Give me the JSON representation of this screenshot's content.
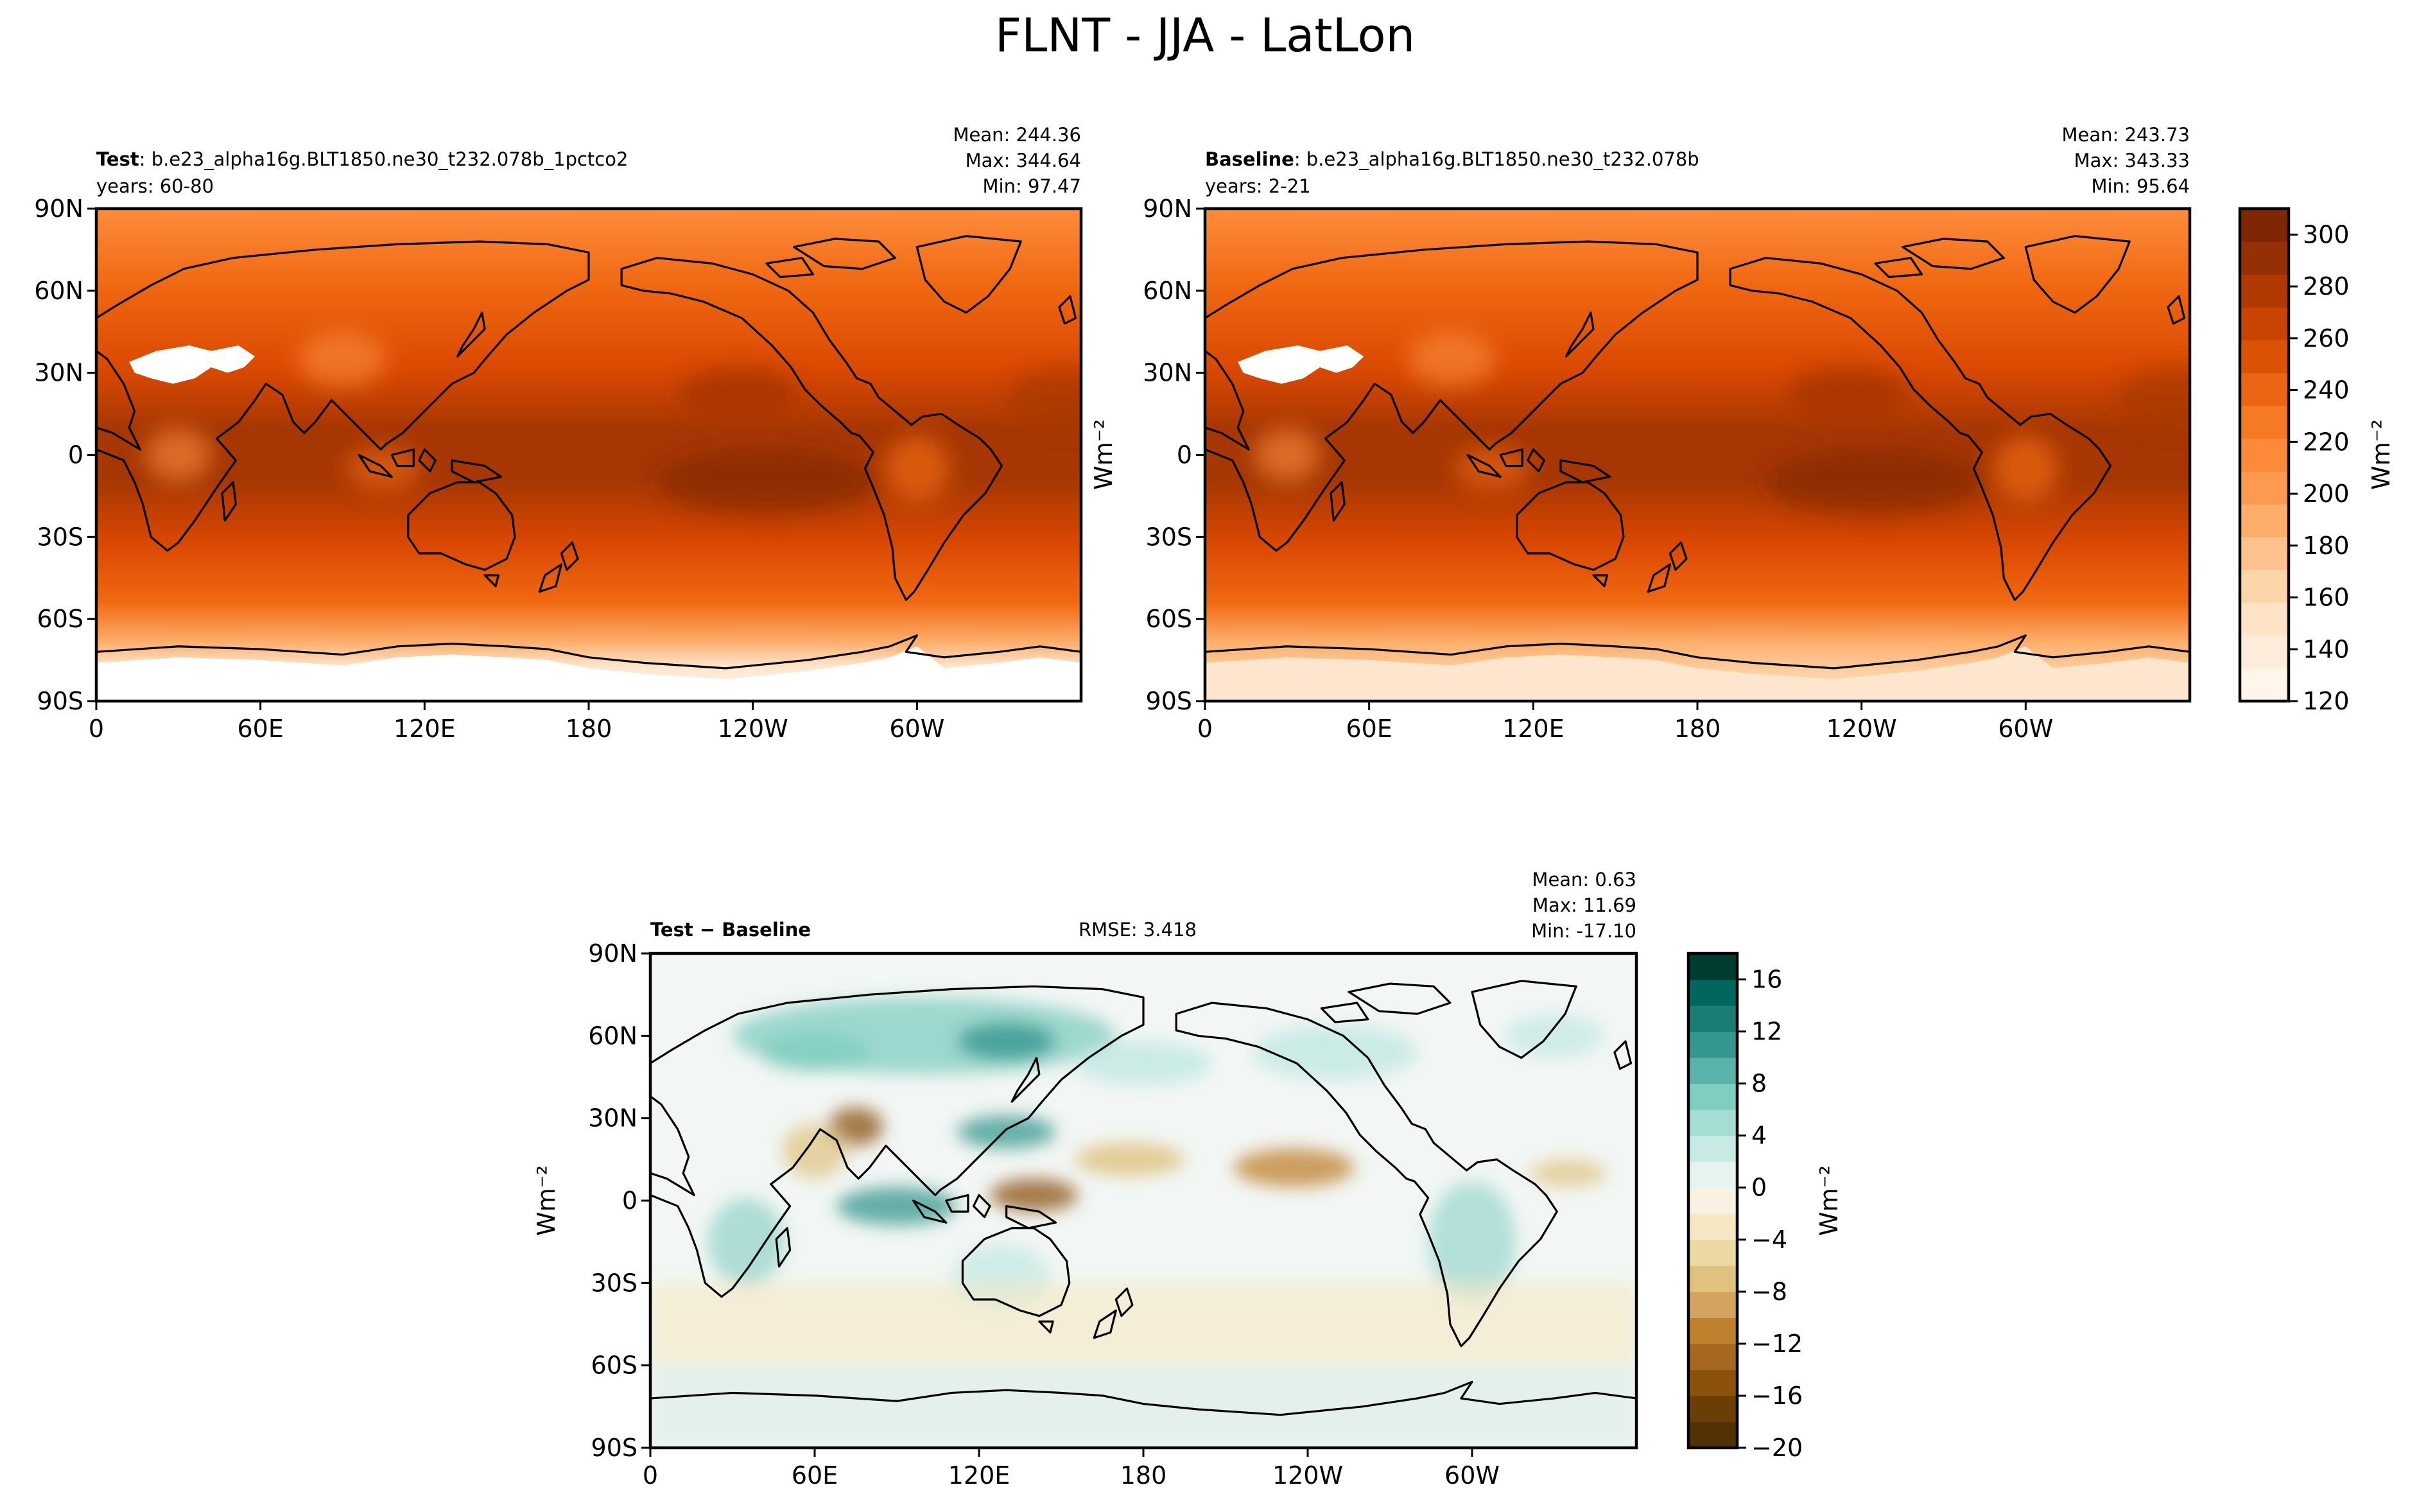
{
  "figure": {
    "title": "FLNT - JJA - LatLon"
  },
  "chart_data": [
    {
      "type": "heatmap",
      "panel": "test",
      "label_bold": "Test",
      "label_rest": ": b.e23_alpha16g.BLT1850.ne30_t232.078b_1pctco2",
      "years": "years: 60-80",
      "stats": {
        "mean": "Mean: 244.36",
        "max": "Max: 344.64",
        "min": "Min: 97.47"
      },
      "x_ticks": [
        "0",
        "60E",
        "120E",
        "180",
        "120W",
        "60W"
      ],
      "y_ticks": [
        "90N",
        "60N",
        "30N",
        "0",
        "30S",
        "60S",
        "90S"
      ],
      "xlim": [
        0,
        360
      ],
      "ylim": [
        -90,
        90
      ],
      "colormap": "Oranges",
      "range": [
        120,
        310
      ]
    },
    {
      "type": "heatmap",
      "panel": "baseline",
      "label_bold": "Baseline",
      "label_rest": ": b.e23_alpha16g.BLT1850.ne30_t232.078b",
      "years": "years: 2-21",
      "stats": {
        "mean": "Mean: 243.73",
        "max": "Max: 343.33",
        "min": "Min: 95.64"
      },
      "x_ticks": [
        "0",
        "60E",
        "120E",
        "180",
        "120W",
        "60W"
      ],
      "y_ticks": [
        "90N",
        "60N",
        "30N",
        "0",
        "30S",
        "60S",
        "90S"
      ],
      "xlim": [
        0,
        360
      ],
      "ylim": [
        -90,
        90
      ],
      "colormap": "Oranges",
      "range": [
        120,
        310
      ]
    },
    {
      "type": "heatmap",
      "panel": "difference",
      "label_bold": "Test − Baseline",
      "rmse": "RMSE: 3.418",
      "stats": {
        "mean": "Mean:  0.63",
        "max": "Max: 11.69",
        "min": "Min: -17.10"
      },
      "x_ticks": [
        "0",
        "60E",
        "120E",
        "180",
        "120W",
        "60W"
      ],
      "y_ticks": [
        "90N",
        "60N",
        "30N",
        "0",
        "30S",
        "60S",
        "90S"
      ],
      "xlim": [
        0,
        360
      ],
      "ylim": [
        -90,
        90
      ],
      "colormap": "BrBG",
      "range": [
        -20,
        18
      ]
    }
  ],
  "colorbars": {
    "absolute": {
      "ticks": [
        "120",
        "140",
        "160",
        "180",
        "200",
        "220",
        "240",
        "260",
        "280",
        "300"
      ],
      "unit": "Wm⁻²",
      "min": 120,
      "max": 310
    },
    "difference": {
      "ticks": [
        "−20",
        "−16",
        "−12",
        "−8",
        "−4",
        "0",
        "4",
        "8",
        "12",
        "16"
      ],
      "unit": "Wm⁻²",
      "min": -20,
      "max": 18
    }
  },
  "y_unit_label": "Wm⁻²",
  "colors": {
    "orange_scale": [
      "#fff5eb",
      "#fee6ce",
      "#fdd0a2",
      "#fdae6b",
      "#fd8d3c",
      "#f16913",
      "#d94801",
      "#a63603",
      "#7f2704"
    ],
    "diff_scale": [
      "#543005",
      "#8c510a",
      "#bf812d",
      "#dfc27d",
      "#f6e8c3",
      "#f5f5f5",
      "#c7eae5",
      "#80cdc1",
      "#35978f",
      "#01665e",
      "#003c30"
    ],
    "coast": "#000000"
  }
}
